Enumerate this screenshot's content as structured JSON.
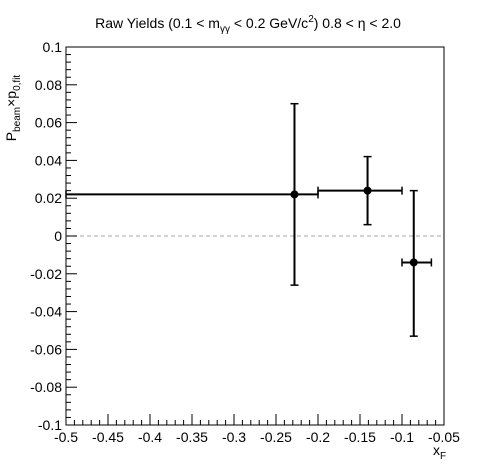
{
  "chart_data": {
    "type": "scatter",
    "title": {
      "prefix": "Raw Yields (0.1 < m",
      "prefix_sub": "γγ",
      "middle": " < 0.2 GeV/c",
      "middle_sup": "2",
      "suffix": ") 0.8 < η < 2.0"
    },
    "xlabel": {
      "main": "x",
      "sub": "F"
    },
    "ylabel": {
      "main": "P",
      "sub1": "beam",
      "mid": "×p",
      "sub2": "0,fit"
    },
    "xlim": [
      -0.5,
      -0.05
    ],
    "ylim": [
      -0.1,
      0.1
    ],
    "x_ticks": [
      "-0.5",
      "-0.45",
      "-0.4",
      "-0.35",
      "-0.3",
      "-0.25",
      "-0.2",
      "-0.15",
      "-0.1",
      "-0.05"
    ],
    "x_tick_values": [
      -0.5,
      -0.45,
      -0.4,
      -0.35,
      -0.3,
      -0.25,
      -0.2,
      -0.15,
      -0.1,
      -0.05
    ],
    "y_ticks": [
      "-0.1",
      "-0.08",
      "-0.06",
      "-0.04",
      "-0.02",
      "0",
      "0.02",
      "0.04",
      "0.06",
      "0.08",
      "0.1"
    ],
    "y_tick_values": [
      -0.1,
      -0.08,
      -0.06,
      -0.04,
      -0.02,
      0,
      0.02,
      0.04,
      0.06,
      0.08,
      0.1
    ],
    "reference_line_y": 0,
    "grid": false,
    "points": [
      {
        "x": -0.228,
        "y": 0.022,
        "x_low": -0.5,
        "x_high": -0.2,
        "y_low": -0.026,
        "y_high": 0.07
      },
      {
        "x": -0.141,
        "y": 0.024,
        "x_low": -0.2,
        "x_high": -0.1,
        "y_low": 0.006,
        "y_high": 0.042
      },
      {
        "x": -0.086,
        "y": -0.014,
        "x_low": -0.1,
        "x_high": -0.065,
        "y_low": -0.053,
        "y_high": 0.024
      }
    ]
  }
}
